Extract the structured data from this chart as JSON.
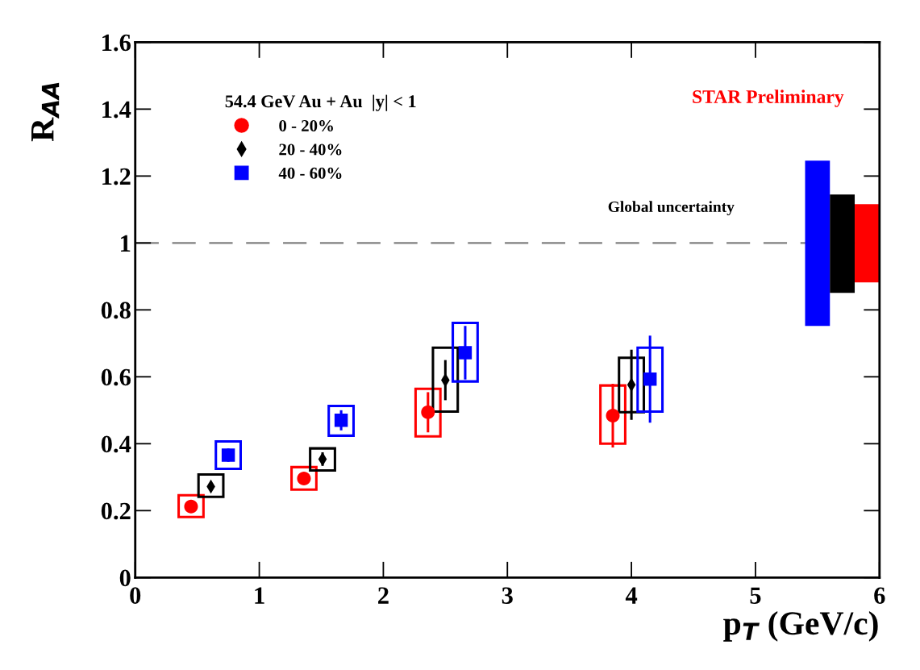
{
  "chart_data": {
    "type": "scatter",
    "xlabel": "p$_{T}$ (GeV/c)",
    "ylabel": "R$_{AA}$",
    "legend_title": "54.4 GeV Au + Au  |y| < 1",
    "xlim": [
      0,
      6
    ],
    "ylim": [
      0,
      1.6
    ],
    "xticks": [
      0,
      1,
      2,
      3,
      4,
      5,
      6
    ],
    "yticks": [
      0,
      0.2,
      0.4,
      0.6,
      0.8,
      1,
      1.2,
      1.4,
      1.6
    ],
    "grid": false,
    "legend": "top left",
    "series": [
      {
        "type": "bar",
        "color": "#ff0000",
        "x": [
          0.45,
          1.36,
          2.36,
          3.85
        ],
        "base": [
          0.181,
          0.263,
          0.422,
          0.4
        ],
        "values": [
          0.065,
          0.067,
          0.142,
          0.174
        ]
      },
      {
        "type": "bar",
        "color": "#000000",
        "x": [
          0.61,
          1.51,
          2.5,
          4.0
        ],
        "base": [
          0.241,
          0.32,
          0.496,
          0.494
        ],
        "values": [
          0.067,
          0.066,
          0.191,
          0.163
        ]
      },
      {
        "type": "bar",
        "color": "#0000ff",
        "x": [
          0.75,
          1.66,
          2.66,
          4.15
        ],
        "base": [
          0.325,
          0.424,
          0.586,
          0.496
        ],
        "values": [
          0.082,
          0.089,
          0.175,
          0.191
        ]
      },
      {
        "name": "0 - 20%",
        "color": "#ff0000",
        "marker": "circle",
        "x": [
          0.45,
          1.36,
          2.36,
          3.85
        ],
        "values": [
          0.212,
          0.296,
          0.494,
          0.484
        ],
        "errors": [
          0.01,
          0.01,
          0.06,
          0.095
        ]
      },
      {
        "name": "20 - 40%",
        "color": "#000000",
        "marker": "diamond",
        "x": [
          0.61,
          1.51,
          2.5,
          4.0
        ],
        "values": [
          0.272,
          0.354,
          0.59,
          0.576
        ],
        "errors": [
          0.01,
          0.02,
          0.06,
          0.105
        ]
      },
      {
        "name": "40 - 60%",
        "color": "#0000ff",
        "marker": "square",
        "x": [
          0.75,
          1.66,
          2.66,
          4.15
        ],
        "values": [
          0.366,
          0.47,
          0.672,
          0.593
        ],
        "errors": [
          0.02,
          0.03,
          0.08,
          0.13
        ]
      },
      {
        "type": "bar",
        "colors": [
          "#0000ff",
          "#000000",
          "#ff0000"
        ],
        "x": [
          5.5,
          5.7,
          5.9
        ],
        "base": [
          0.752,
          0.851,
          0.882
        ],
        "values": [
          0.494,
          0.294,
          0.234
        ]
      }
    ],
    "ref_lines": [
      {
        "axis": "y",
        "value": 1,
        "color": "#808080",
        "line_style": "dashed"
      }
    ],
    "annotations": [
      "STAR Preliminary",
      "Global uncertainty"
    ]
  }
}
